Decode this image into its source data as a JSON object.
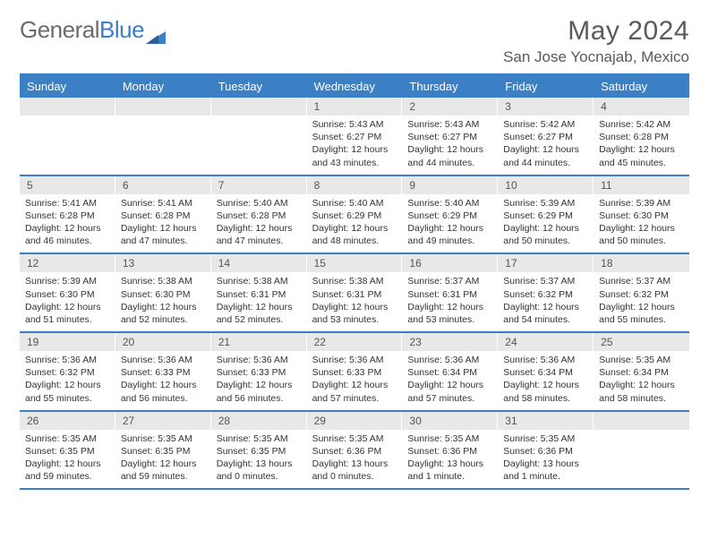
{
  "brand": {
    "name_part1": "General",
    "name_part2": "Blue"
  },
  "title": "May 2024",
  "location": "San Jose Yocnajab, Mexico",
  "colors": {
    "accent": "#3b7fc4",
    "header_text": "#5a5a5a",
    "daynum_bg": "#e8e8e8",
    "text": "#333333"
  },
  "weekdays": [
    "Sunday",
    "Monday",
    "Tuesday",
    "Wednesday",
    "Thursday",
    "Friday",
    "Saturday"
  ],
  "weeks": [
    [
      {
        "day": "",
        "sunrise": "",
        "sunset": "",
        "daylight": ""
      },
      {
        "day": "",
        "sunrise": "",
        "sunset": "",
        "daylight": ""
      },
      {
        "day": "",
        "sunrise": "",
        "sunset": "",
        "daylight": ""
      },
      {
        "day": "1",
        "sunrise": "Sunrise: 5:43 AM",
        "sunset": "Sunset: 6:27 PM",
        "daylight": "Daylight: 12 hours and 43 minutes."
      },
      {
        "day": "2",
        "sunrise": "Sunrise: 5:43 AM",
        "sunset": "Sunset: 6:27 PM",
        "daylight": "Daylight: 12 hours and 44 minutes."
      },
      {
        "day": "3",
        "sunrise": "Sunrise: 5:42 AM",
        "sunset": "Sunset: 6:27 PM",
        "daylight": "Daylight: 12 hours and 44 minutes."
      },
      {
        "day": "4",
        "sunrise": "Sunrise: 5:42 AM",
        "sunset": "Sunset: 6:28 PM",
        "daylight": "Daylight: 12 hours and 45 minutes."
      }
    ],
    [
      {
        "day": "5",
        "sunrise": "Sunrise: 5:41 AM",
        "sunset": "Sunset: 6:28 PM",
        "daylight": "Daylight: 12 hours and 46 minutes."
      },
      {
        "day": "6",
        "sunrise": "Sunrise: 5:41 AM",
        "sunset": "Sunset: 6:28 PM",
        "daylight": "Daylight: 12 hours and 47 minutes."
      },
      {
        "day": "7",
        "sunrise": "Sunrise: 5:40 AM",
        "sunset": "Sunset: 6:28 PM",
        "daylight": "Daylight: 12 hours and 47 minutes."
      },
      {
        "day": "8",
        "sunrise": "Sunrise: 5:40 AM",
        "sunset": "Sunset: 6:29 PM",
        "daylight": "Daylight: 12 hours and 48 minutes."
      },
      {
        "day": "9",
        "sunrise": "Sunrise: 5:40 AM",
        "sunset": "Sunset: 6:29 PM",
        "daylight": "Daylight: 12 hours and 49 minutes."
      },
      {
        "day": "10",
        "sunrise": "Sunrise: 5:39 AM",
        "sunset": "Sunset: 6:29 PM",
        "daylight": "Daylight: 12 hours and 50 minutes."
      },
      {
        "day": "11",
        "sunrise": "Sunrise: 5:39 AM",
        "sunset": "Sunset: 6:30 PM",
        "daylight": "Daylight: 12 hours and 50 minutes."
      }
    ],
    [
      {
        "day": "12",
        "sunrise": "Sunrise: 5:39 AM",
        "sunset": "Sunset: 6:30 PM",
        "daylight": "Daylight: 12 hours and 51 minutes."
      },
      {
        "day": "13",
        "sunrise": "Sunrise: 5:38 AM",
        "sunset": "Sunset: 6:30 PM",
        "daylight": "Daylight: 12 hours and 52 minutes."
      },
      {
        "day": "14",
        "sunrise": "Sunrise: 5:38 AM",
        "sunset": "Sunset: 6:31 PM",
        "daylight": "Daylight: 12 hours and 52 minutes."
      },
      {
        "day": "15",
        "sunrise": "Sunrise: 5:38 AM",
        "sunset": "Sunset: 6:31 PM",
        "daylight": "Daylight: 12 hours and 53 minutes."
      },
      {
        "day": "16",
        "sunrise": "Sunrise: 5:37 AM",
        "sunset": "Sunset: 6:31 PM",
        "daylight": "Daylight: 12 hours and 53 minutes."
      },
      {
        "day": "17",
        "sunrise": "Sunrise: 5:37 AM",
        "sunset": "Sunset: 6:32 PM",
        "daylight": "Daylight: 12 hours and 54 minutes."
      },
      {
        "day": "18",
        "sunrise": "Sunrise: 5:37 AM",
        "sunset": "Sunset: 6:32 PM",
        "daylight": "Daylight: 12 hours and 55 minutes."
      }
    ],
    [
      {
        "day": "19",
        "sunrise": "Sunrise: 5:36 AM",
        "sunset": "Sunset: 6:32 PM",
        "daylight": "Daylight: 12 hours and 55 minutes."
      },
      {
        "day": "20",
        "sunrise": "Sunrise: 5:36 AM",
        "sunset": "Sunset: 6:33 PM",
        "daylight": "Daylight: 12 hours and 56 minutes."
      },
      {
        "day": "21",
        "sunrise": "Sunrise: 5:36 AM",
        "sunset": "Sunset: 6:33 PM",
        "daylight": "Daylight: 12 hours and 56 minutes."
      },
      {
        "day": "22",
        "sunrise": "Sunrise: 5:36 AM",
        "sunset": "Sunset: 6:33 PM",
        "daylight": "Daylight: 12 hours and 57 minutes."
      },
      {
        "day": "23",
        "sunrise": "Sunrise: 5:36 AM",
        "sunset": "Sunset: 6:34 PM",
        "daylight": "Daylight: 12 hours and 57 minutes."
      },
      {
        "day": "24",
        "sunrise": "Sunrise: 5:36 AM",
        "sunset": "Sunset: 6:34 PM",
        "daylight": "Daylight: 12 hours and 58 minutes."
      },
      {
        "day": "25",
        "sunrise": "Sunrise: 5:35 AM",
        "sunset": "Sunset: 6:34 PM",
        "daylight": "Daylight: 12 hours and 58 minutes."
      }
    ],
    [
      {
        "day": "26",
        "sunrise": "Sunrise: 5:35 AM",
        "sunset": "Sunset: 6:35 PM",
        "daylight": "Daylight: 12 hours and 59 minutes."
      },
      {
        "day": "27",
        "sunrise": "Sunrise: 5:35 AM",
        "sunset": "Sunset: 6:35 PM",
        "daylight": "Daylight: 12 hours and 59 minutes."
      },
      {
        "day": "28",
        "sunrise": "Sunrise: 5:35 AM",
        "sunset": "Sunset: 6:35 PM",
        "daylight": "Daylight: 13 hours and 0 minutes."
      },
      {
        "day": "29",
        "sunrise": "Sunrise: 5:35 AM",
        "sunset": "Sunset: 6:36 PM",
        "daylight": "Daylight: 13 hours and 0 minutes."
      },
      {
        "day": "30",
        "sunrise": "Sunrise: 5:35 AM",
        "sunset": "Sunset: 6:36 PM",
        "daylight": "Daylight: 13 hours and 1 minute."
      },
      {
        "day": "31",
        "sunrise": "Sunrise: 5:35 AM",
        "sunset": "Sunset: 6:36 PM",
        "daylight": "Daylight: 13 hours and 1 minute."
      },
      {
        "day": "",
        "sunrise": "",
        "sunset": "",
        "daylight": ""
      }
    ]
  ]
}
